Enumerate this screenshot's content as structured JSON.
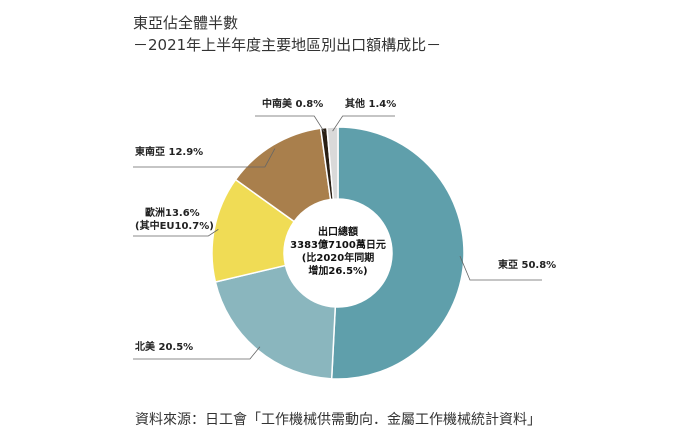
{
  "header": {
    "title": "東亞佔全體半數",
    "subtitle": "－2021年上半年度主要地區別出口額構成比－"
  },
  "source": "資料來源：日工會「工作機械供需動向．金屬工作機械統計資料」",
  "center_text": [
    "出口總額",
    "3383億7100萬日元",
    "(比2020年同期",
    "增加26.5%)"
  ],
  "chart_data": {
    "type": "pie",
    "title": "東亞佔全體半數",
    "subtitle": "－2021年上半年度主要地區別出口額構成比－",
    "slices": [
      {
        "name": "東亞",
        "value": 50.8,
        "color": "#5f9fab",
        "label": "東亞  50.8%"
      },
      {
        "name": "北美",
        "value": 20.5,
        "color": "#8ab6be",
        "label": "北美  20.5%"
      },
      {
        "name": "歐洲",
        "value": 13.6,
        "color": "#f0dc55",
        "label": "歐洲13.6%",
        "label2": "(其中EU10.7%)"
      },
      {
        "name": "東南亞",
        "value": 12.9,
        "color": "#a97f4c",
        "label": "東南亞  12.9%"
      },
      {
        "name": "中南美",
        "value": 0.8,
        "color": "#2a1f14",
        "label": "中南美  0.8%"
      },
      {
        "name": "其他",
        "value": 1.4,
        "color": "#d9d9d9",
        "label": "其他  1.4%"
      }
    ]
  }
}
